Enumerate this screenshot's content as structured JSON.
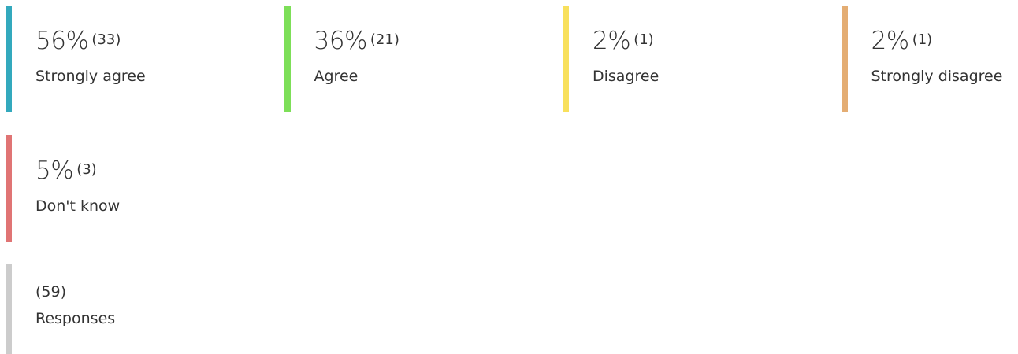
{
  "stats": [
    {
      "percent": "56%",
      "count": "(33)",
      "label": "Strongly agree",
      "color": "#33a9bd"
    },
    {
      "percent": "36%",
      "count": "(21)",
      "label": "Agree",
      "color": "#7ddf58"
    },
    {
      "percent": "2%",
      "count": "(1)",
      "label": "Disagree",
      "color": "#f8e05c"
    },
    {
      "percent": "2%",
      "count": "(1)",
      "label": "Strongly disagree",
      "color": "#e4ad73"
    },
    {
      "percent": "5%",
      "count": "(3)",
      "label": "Don't know",
      "color": "#e07474"
    }
  ],
  "total": {
    "count": "(59)",
    "label": "Responses",
    "color": "#cccccc"
  }
}
